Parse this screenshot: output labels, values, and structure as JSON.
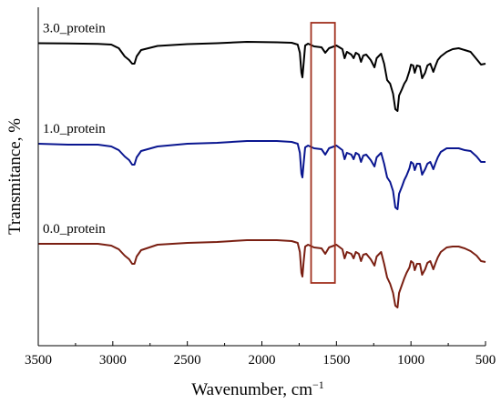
{
  "chart_data": {
    "type": "line",
    "title": "",
    "xlabel": "Wavenumber, cm",
    "xlabel_superscript": "−1",
    "ylabel": "Transmitance, %",
    "xlim": [
      3500,
      500
    ],
    "x_reversed": true,
    "x_ticks": [
      3500,
      3000,
      2500,
      2000,
      1500,
      1000,
      500
    ],
    "y_ticks_shown": false,
    "grid": false,
    "legend": "none",
    "highlight_region": {
      "x_from": 1670,
      "x_to": 1510,
      "color": "#a0301e"
    },
    "series": [
      {
        "name": "3.0_protein",
        "color": "#000000",
        "points": [
          [
            3500,
            47.5
          ],
          [
            3300,
            47.8
          ],
          [
            3100,
            48.3
          ],
          [
            3010,
            49
          ],
          [
            2960,
            53
          ],
          [
            2920,
            62
          ],
          [
            2890,
            66
          ],
          [
            2870,
            70
          ],
          [
            2855,
            70
          ],
          [
            2840,
            62
          ],
          [
            2810,
            55
          ],
          [
            2700,
            50.5
          ],
          [
            2500,
            48.5
          ],
          [
            2300,
            47.5
          ],
          [
            2100,
            46
          ],
          [
            1900,
            46.5
          ],
          [
            1800,
            47
          ],
          [
            1760,
            49
          ],
          [
            1745,
            58
          ],
          [
            1735,
            80
          ],
          [
            1728,
            85
          ],
          [
            1720,
            70
          ],
          [
            1710,
            50
          ],
          [
            1690,
            48
          ],
          [
            1650,
            51
          ],
          [
            1600,
            52
          ],
          [
            1575,
            58
          ],
          [
            1550,
            53
          ],
          [
            1500,
            50
          ],
          [
            1460,
            54
          ],
          [
            1445,
            64
          ],
          [
            1430,
            57
          ],
          [
            1400,
            60
          ],
          [
            1385,
            64
          ],
          [
            1370,
            58
          ],
          [
            1350,
            60
          ],
          [
            1335,
            68
          ],
          [
            1320,
            61
          ],
          [
            1300,
            60
          ],
          [
            1270,
            66
          ],
          [
            1245,
            74
          ],
          [
            1230,
            64
          ],
          [
            1200,
            59
          ],
          [
            1180,
            70
          ],
          [
            1160,
            88
          ],
          [
            1140,
            92
          ],
          [
            1120,
            103
          ],
          [
            1105,
            120
          ],
          [
            1090,
            122
          ],
          [
            1080,
            105
          ],
          [
            1060,
            98
          ],
          [
            1045,
            92
          ],
          [
            1030,
            88
          ],
          [
            1010,
            78
          ],
          [
            1000,
            71
          ],
          [
            985,
            72
          ],
          [
            975,
            80
          ],
          [
            960,
            72
          ],
          [
            940,
            73
          ],
          [
            925,
            86
          ],
          [
            905,
            80
          ],
          [
            890,
            72
          ],
          [
            870,
            70
          ],
          [
            850,
            79
          ],
          [
            835,
            72
          ],
          [
            820,
            66
          ],
          [
            800,
            62
          ],
          [
            760,
            57
          ],
          [
            720,
            54
          ],
          [
            680,
            53
          ],
          [
            640,
            55
          ],
          [
            600,
            57
          ],
          [
            560,
            65
          ],
          [
            530,
            71
          ],
          [
            500,
            70
          ]
        ]
      },
      {
        "name": "1.0_protein",
        "color": "#0a1690",
        "points": [
          [
            3500,
            158
          ],
          [
            3300,
            159
          ],
          [
            3100,
            159
          ],
          [
            3010,
            161
          ],
          [
            2960,
            165
          ],
          [
            2920,
            172
          ],
          [
            2890,
            176
          ],
          [
            2870,
            181
          ],
          [
            2855,
            181
          ],
          [
            2840,
            173
          ],
          [
            2810,
            166
          ],
          [
            2700,
            161
          ],
          [
            2500,
            158
          ],
          [
            2300,
            157
          ],
          [
            2100,
            155
          ],
          [
            1900,
            155
          ],
          [
            1800,
            156
          ],
          [
            1760,
            158
          ],
          [
            1745,
            168
          ],
          [
            1735,
            191
          ],
          [
            1728,
            195
          ],
          [
            1720,
            180
          ],
          [
            1710,
            162
          ],
          [
            1690,
            160
          ],
          [
            1650,
            163
          ],
          [
            1600,
            164
          ],
          [
            1575,
            170
          ],
          [
            1550,
            163
          ],
          [
            1500,
            160
          ],
          [
            1460,
            165
          ],
          [
            1445,
            175
          ],
          [
            1430,
            168
          ],
          [
            1400,
            170
          ],
          [
            1385,
            175
          ],
          [
            1370,
            168
          ],
          [
            1350,
            170
          ],
          [
            1335,
            178
          ],
          [
            1320,
            171
          ],
          [
            1300,
            170
          ],
          [
            1270,
            176
          ],
          [
            1245,
            183
          ],
          [
            1230,
            173
          ],
          [
            1200,
            168
          ],
          [
            1180,
            180
          ],
          [
            1160,
            195
          ],
          [
            1140,
            200
          ],
          [
            1120,
            210
          ],
          [
            1105,
            228
          ],
          [
            1090,
            230
          ],
          [
            1080,
            213
          ],
          [
            1060,
            205
          ],
          [
            1045,
            198
          ],
          [
            1030,
            193
          ],
          [
            1010,
            185
          ],
          [
            1000,
            178
          ],
          [
            985,
            180
          ],
          [
            975,
            187
          ],
          [
            960,
            180
          ],
          [
            940,
            180
          ],
          [
            925,
            192
          ],
          [
            905,
            186
          ],
          [
            890,
            180
          ],
          [
            870,
            178
          ],
          [
            850,
            186
          ],
          [
            835,
            179
          ],
          [
            820,
            173
          ],
          [
            800,
            167
          ],
          [
            760,
            163
          ],
          [
            720,
            163
          ],
          [
            680,
            163
          ],
          [
            640,
            165
          ],
          [
            600,
            166
          ],
          [
            560,
            172
          ],
          [
            530,
            178
          ],
          [
            500,
            178
          ]
        ]
      },
      {
        "name": "0.0_protein",
        "color": "#7a1f12",
        "points": [
          [
            3500,
            268
          ],
          [
            3300,
            268
          ],
          [
            3100,
            268
          ],
          [
            3010,
            270
          ],
          [
            2960,
            274
          ],
          [
            2920,
            281
          ],
          [
            2890,
            285
          ],
          [
            2870,
            290
          ],
          [
            2855,
            290
          ],
          [
            2840,
            282
          ],
          [
            2810,
            275
          ],
          [
            2700,
            269
          ],
          [
            2500,
            267
          ],
          [
            2300,
            266
          ],
          [
            2100,
            264
          ],
          [
            1900,
            264
          ],
          [
            1800,
            265
          ],
          [
            1760,
            267
          ],
          [
            1745,
            277
          ],
          [
            1735,
            300
          ],
          [
            1728,
            304
          ],
          [
            1720,
            288
          ],
          [
            1710,
            271
          ],
          [
            1690,
            269
          ],
          [
            1650,
            272
          ],
          [
            1600,
            273
          ],
          [
            1575,
            279
          ],
          [
            1550,
            272
          ],
          [
            1500,
            269
          ],
          [
            1460,
            274
          ],
          [
            1445,
            284
          ],
          [
            1430,
            277
          ],
          [
            1400,
            279
          ],
          [
            1385,
            284
          ],
          [
            1370,
            277
          ],
          [
            1350,
            279
          ],
          [
            1335,
            287
          ],
          [
            1320,
            280
          ],
          [
            1300,
            279
          ],
          [
            1270,
            285
          ],
          [
            1245,
            292
          ],
          [
            1230,
            282
          ],
          [
            1200,
            277
          ],
          [
            1180,
            290
          ],
          [
            1160,
            305
          ],
          [
            1140,
            312
          ],
          [
            1120,
            322
          ],
          [
            1105,
            336
          ],
          [
            1090,
            338
          ],
          [
            1080,
            322
          ],
          [
            1060,
            313
          ],
          [
            1045,
            306
          ],
          [
            1030,
            300
          ],
          [
            1010,
            294
          ],
          [
            1000,
            287
          ],
          [
            985,
            289
          ],
          [
            975,
            297
          ],
          [
            960,
            290
          ],
          [
            940,
            290
          ],
          [
            925,
            302
          ],
          [
            905,
            296
          ],
          [
            890,
            289
          ],
          [
            870,
            287
          ],
          [
            850,
            296
          ],
          [
            835,
            289
          ],
          [
            820,
            283
          ],
          [
            800,
            277
          ],
          [
            760,
            272
          ],
          [
            720,
            271
          ],
          [
            680,
            271
          ],
          [
            640,
            273
          ],
          [
            600,
            276
          ],
          [
            560,
            281
          ],
          [
            530,
            287
          ],
          [
            500,
            288
          ]
        ]
      }
    ]
  }
}
